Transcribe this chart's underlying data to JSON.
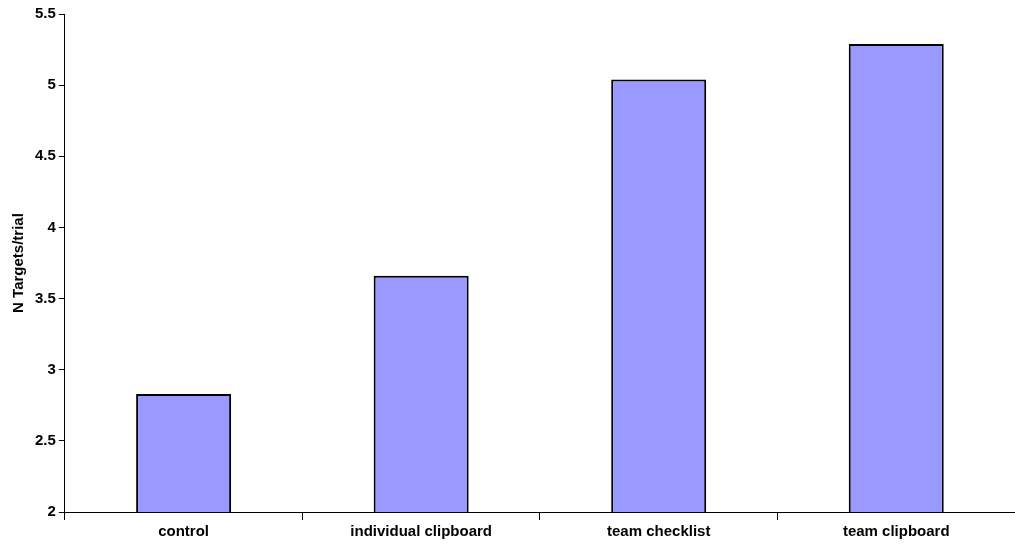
{
  "chart_data": {
    "type": "bar",
    "ylabel": "N Targets/trial",
    "categories": [
      "control",
      "individual clipboard",
      "team checklist",
      "team clipboard"
    ],
    "values": [
      2.83,
      3.66,
      5.04,
      5.29
    ],
    "color": "#9999ff",
    "ylim": [
      2,
      5.5
    ],
    "yticks": [
      2,
      2.5,
      3,
      3.5,
      4,
      4.5,
      5,
      5.5
    ],
    "grid": false,
    "legend": false
  }
}
